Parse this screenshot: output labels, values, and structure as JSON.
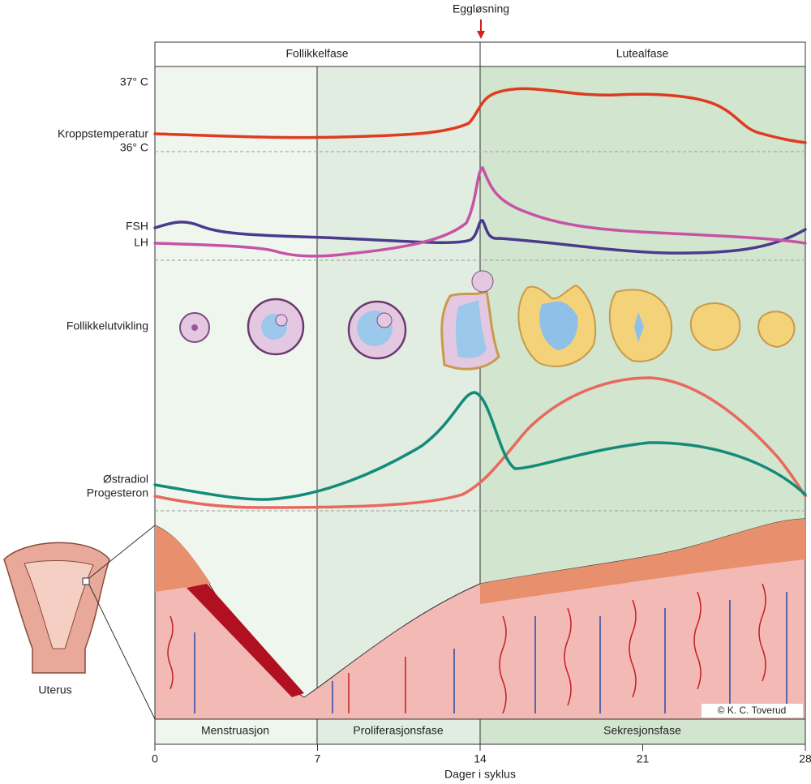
{
  "ovulation": "Eggløsning",
  "top_phases": [
    "Follikkelfase",
    "Lutealfase"
  ],
  "labels": {
    "temp_high": "37° C",
    "temperature": "Kroppstemperatur",
    "temp_low": "36° C",
    "fsh": "FSH",
    "lh": "LH",
    "follicles": "Follikkelutvikling",
    "estradiol": "Østradiol",
    "progesterone": "Progesteron",
    "uterus": "Uterus",
    "credit": "© K. C. Toverud"
  },
  "bottom_phases": [
    "Menstruasjon",
    "Proliferasjonsfase",
    "Sekresjonsfase"
  ],
  "x_axis": {
    "label": "Dager i syklus",
    "ticks": [
      0,
      7,
      14,
      21,
      28
    ],
    "lim": [
      0,
      28
    ]
  }
}
